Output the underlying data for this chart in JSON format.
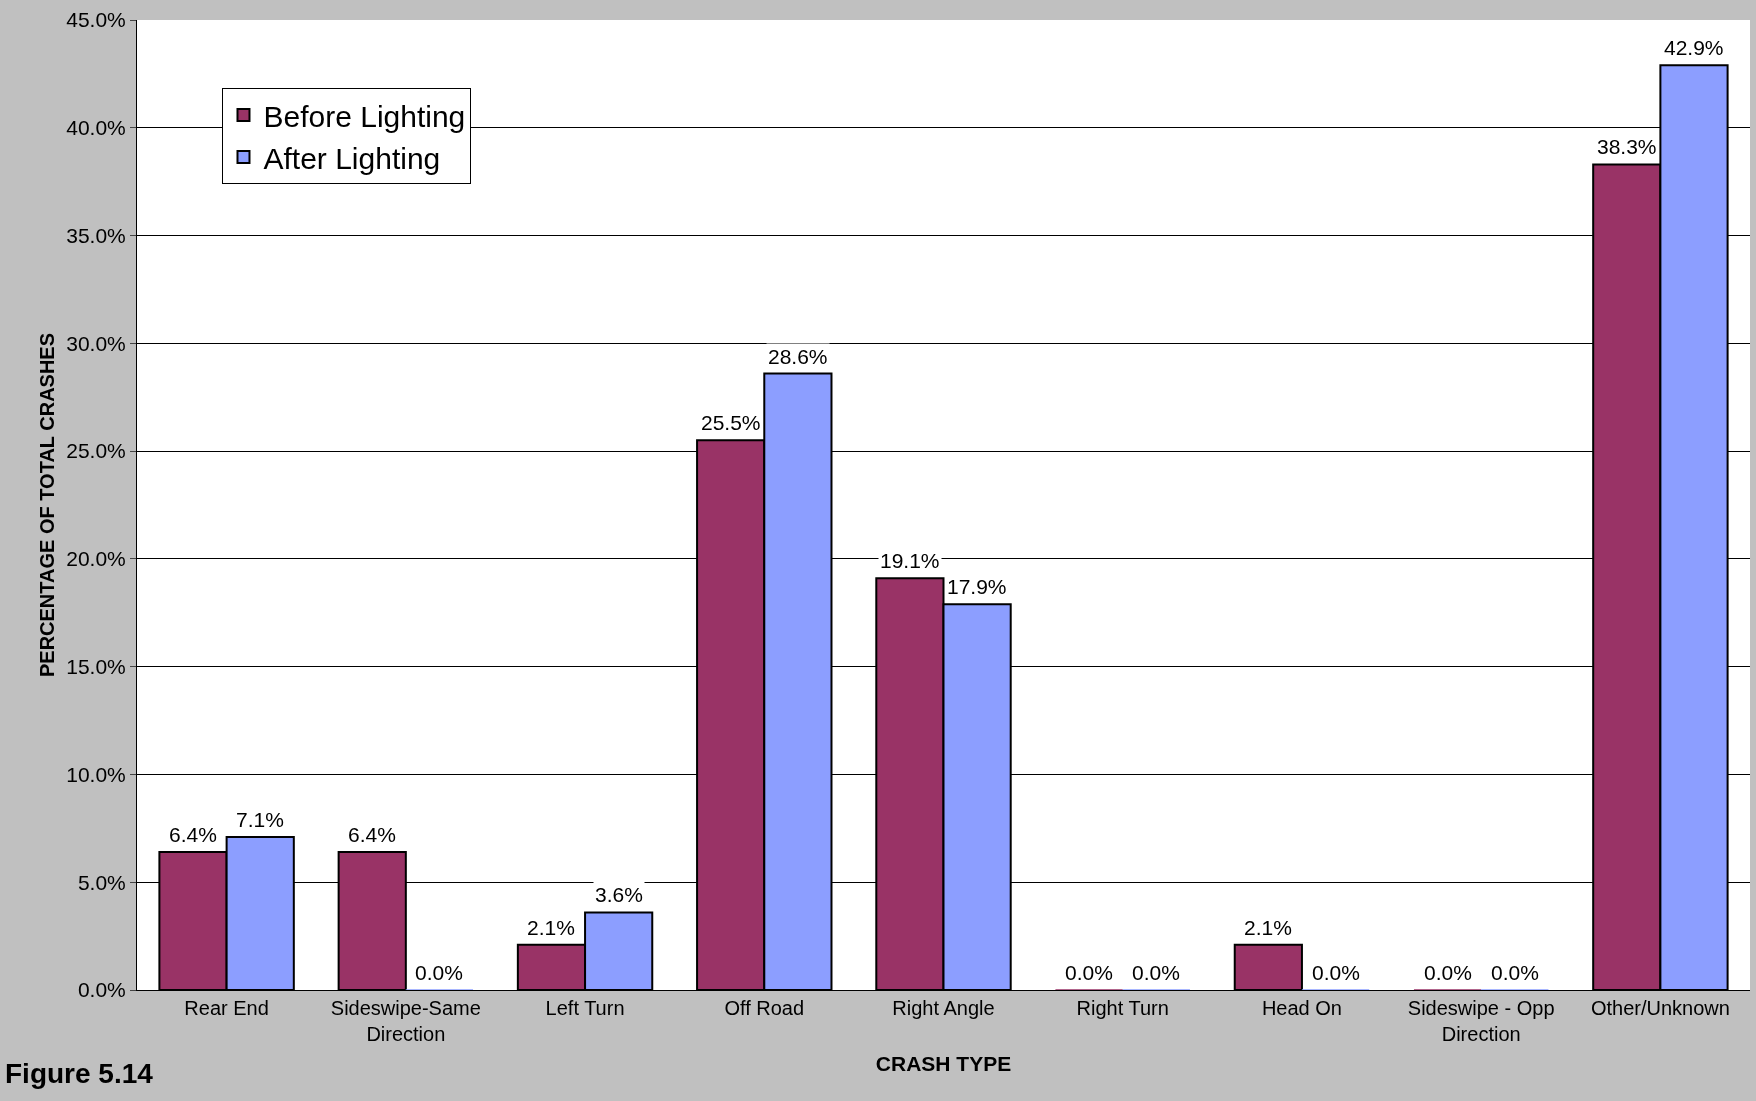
{
  "chart_data": {
    "type": "bar",
    "xlabel": "CRASH TYPE",
    "ylabel": "PERCENTAGE OF TOTAL CRASHES",
    "annotations": [
      "Figure 5.14"
    ],
    "categories": [
      "Rear End",
      "Sideswipe-Same\nDirection",
      "Left Turn",
      "Off Road",
      "Right Angle",
      "Right Turn",
      "Head On",
      "Sideswipe - Opp\nDirection",
      "Other/Unknown"
    ],
    "series": [
      {
        "name": "Before Lighting",
        "color": "#993366",
        "values": [
          6.4,
          6.4,
          2.1,
          25.5,
          19.1,
          0.0,
          2.1,
          0.0,
          38.3
        ],
        "value_labels": [
          "6.4%",
          "6.4%",
          "2.1%",
          "25.5%",
          "19.1%",
          "0.0%",
          "2.1%",
          "0.0%",
          "38.3%"
        ]
      },
      {
        "name": "After Lighting",
        "color": "#8c9eff",
        "values": [
          7.1,
          0.0,
          3.6,
          28.6,
          17.9,
          0.0,
          0.0,
          0.0,
          42.9
        ],
        "value_labels": [
          "7.1%",
          "0.0%",
          "3.6%",
          "28.6%",
          "17.9%",
          "0.0%",
          "0.0%",
          "0.0%",
          "42.9%"
        ]
      }
    ],
    "ylim": [
      0,
      45
    ],
    "yticks": [
      {
        "value": 0,
        "label": "0.0%"
      },
      {
        "value": 5,
        "label": "5.0%"
      },
      {
        "value": 10,
        "label": "10.0%"
      },
      {
        "value": 15,
        "label": "15.0%"
      },
      {
        "value": 20,
        "label": "20.0%"
      },
      {
        "value": 25,
        "label": "25.0%"
      },
      {
        "value": 30,
        "label": "30.0%"
      },
      {
        "value": 35,
        "label": "35.0%"
      },
      {
        "value": 40,
        "label": "40.0%"
      },
      {
        "value": 45,
        "label": "45.0%"
      }
    ],
    "grid": "y",
    "legend": "top left"
  }
}
